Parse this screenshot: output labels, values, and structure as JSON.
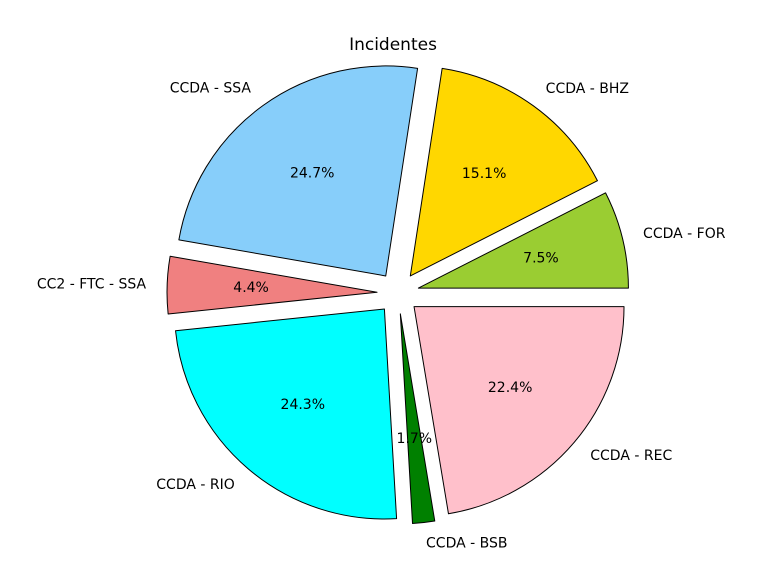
{
  "chart_data": {
    "type": "pie",
    "title": "Incidentes",
    "start_angle_deg": 0,
    "direction": "counterclockwise",
    "slices": [
      {
        "label": "CCDA - FOR",
        "value": 7.5,
        "pct_label": "7.5%",
        "color": "#9acd32",
        "exploded": true
      },
      {
        "label": "CCDA - BHZ",
        "value": 15.1,
        "pct_label": "15.1%",
        "color": "#ffd700",
        "exploded": true
      },
      {
        "label": "CCDA - SSA",
        "value": 24.7,
        "pct_label": "24.7%",
        "color": "#87cefa",
        "exploded": true
      },
      {
        "label": "CC2 - FTC - SSA",
        "value": 4.4,
        "pct_label": "4.4%",
        "color": "#f08080",
        "exploded": true
      },
      {
        "label": "CCDA - RIO",
        "value": 24.3,
        "pct_label": "24.3%",
        "color": "#00ffff",
        "exploded": true
      },
      {
        "label": "CCDA - BSB",
        "value": 1.7,
        "pct_label": "1.7%",
        "color": "#008000",
        "exploded": true
      },
      {
        "label": "CCDA - REC",
        "value": 22.4,
        "pct_label": "22.4%",
        "color": "#ffc0cb",
        "exploded": true
      }
    ]
  }
}
